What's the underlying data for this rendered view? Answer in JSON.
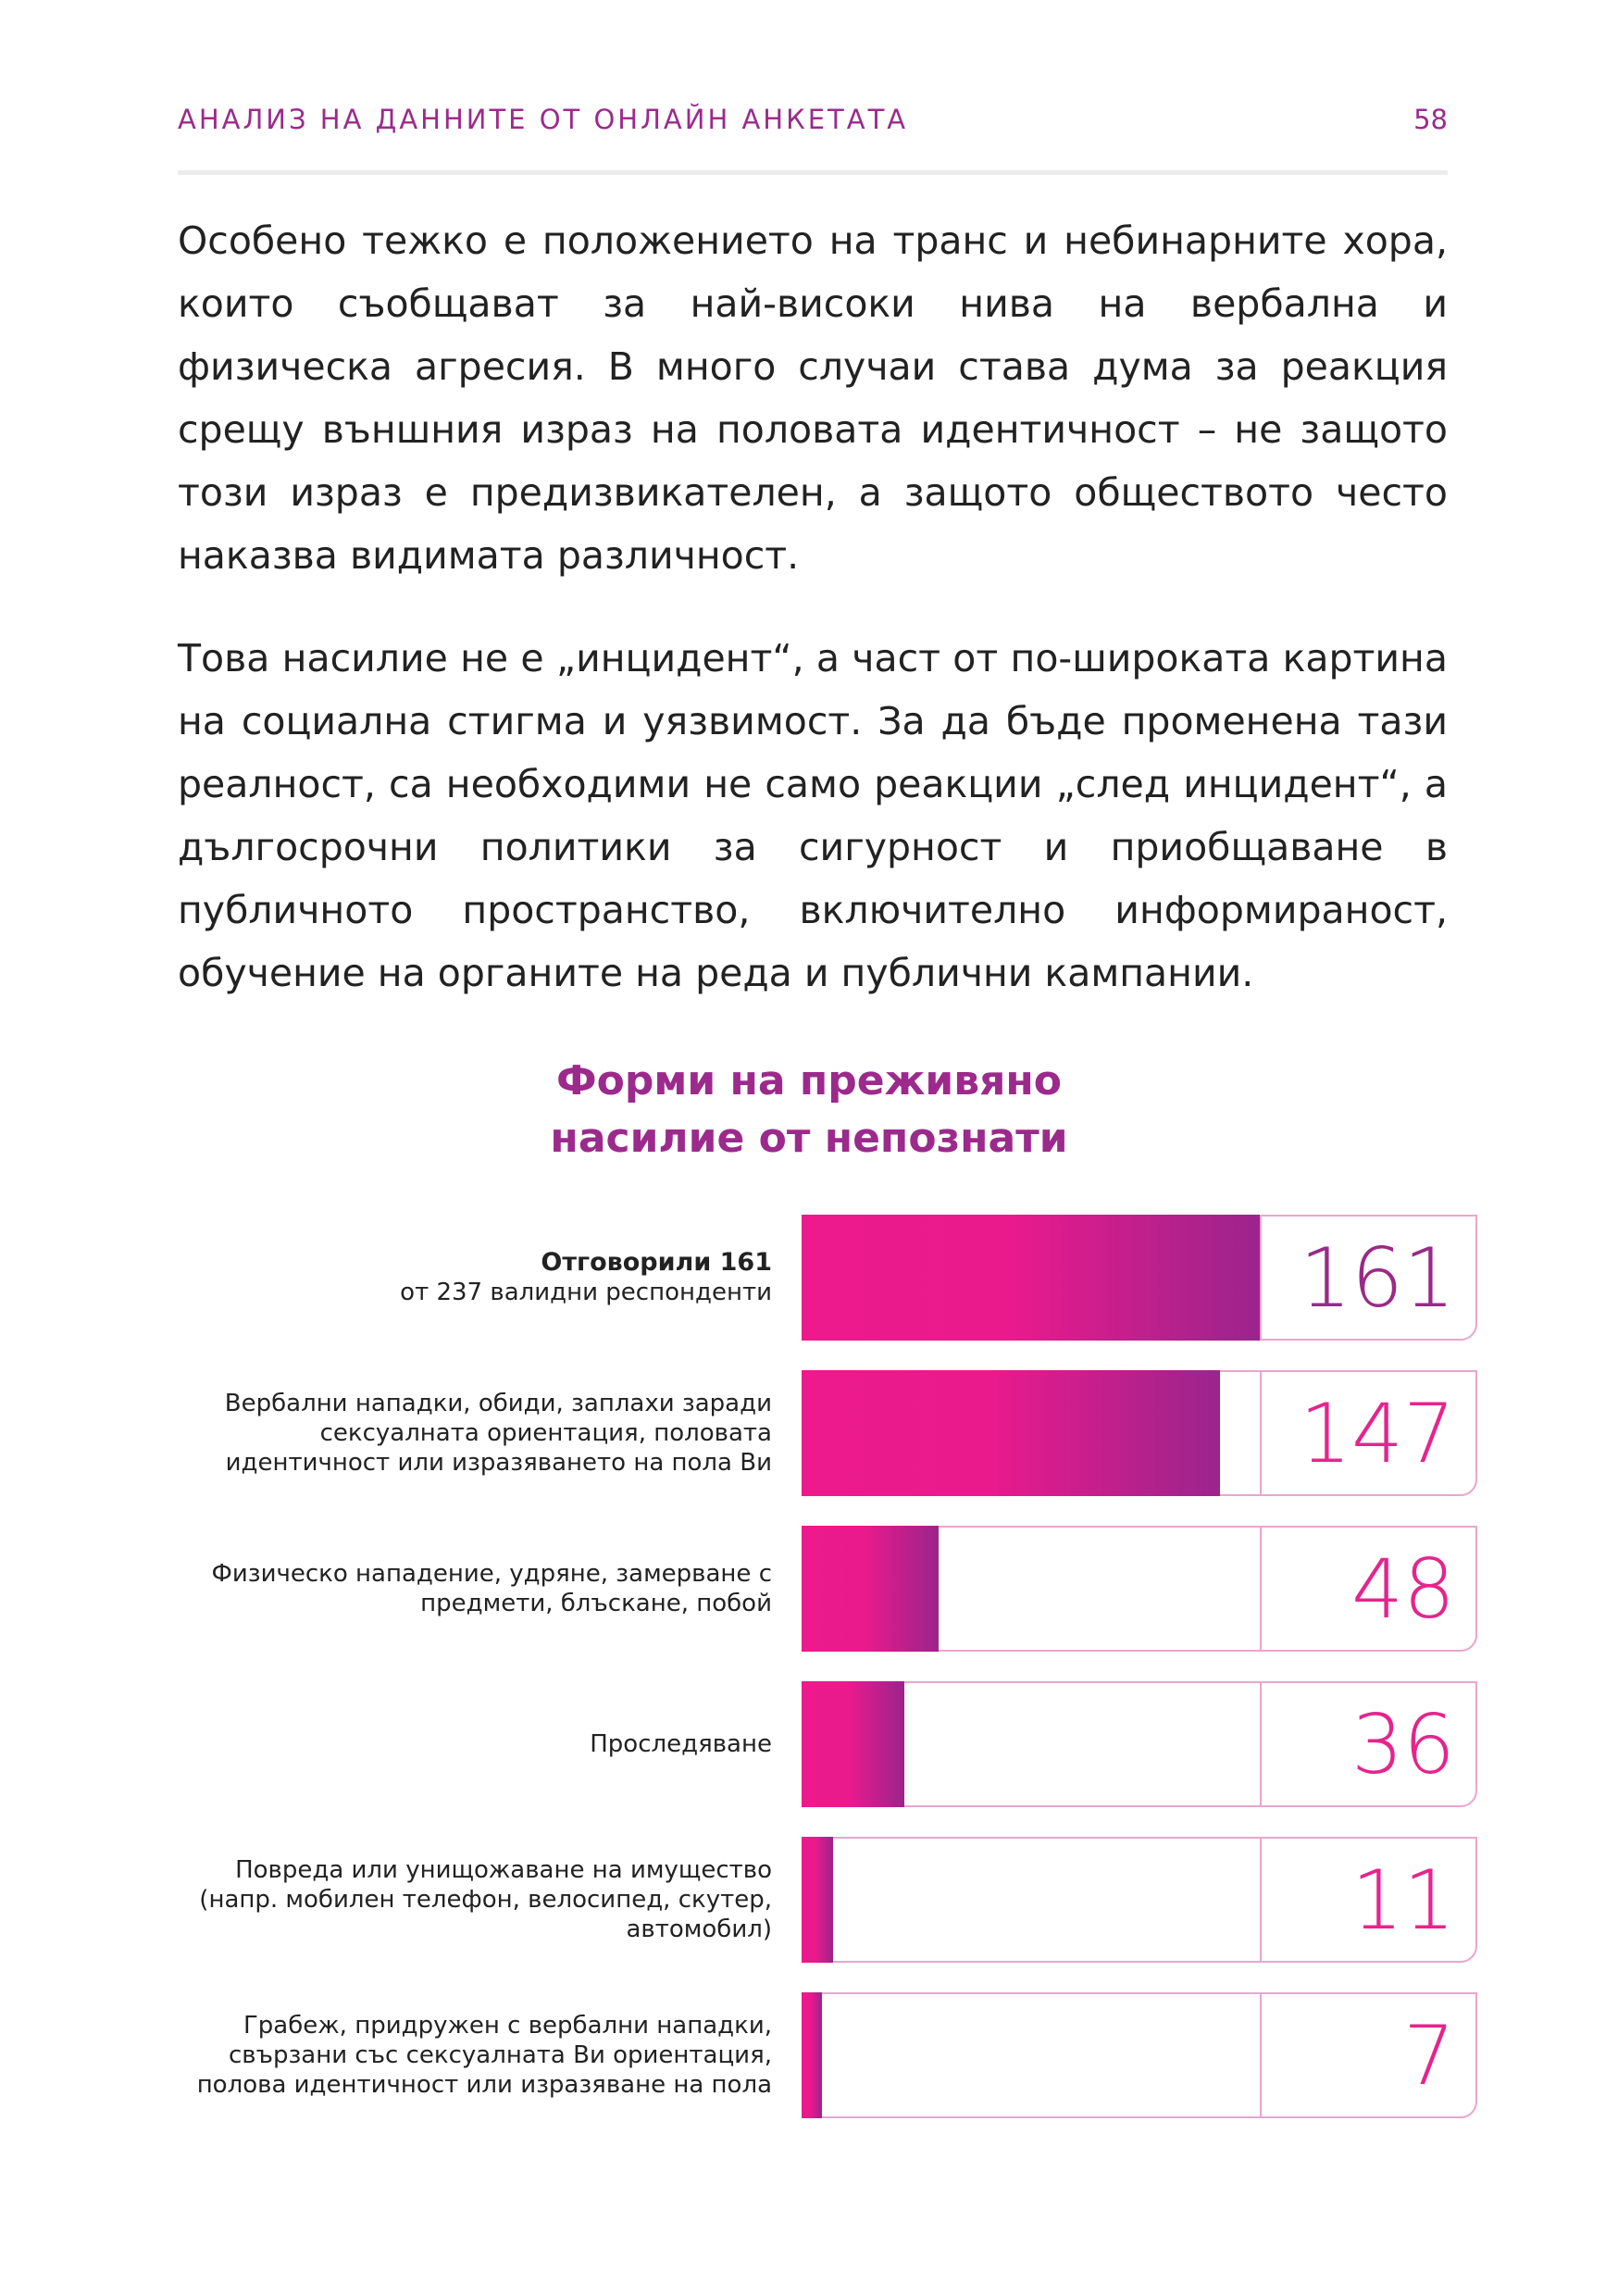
{
  "header": {
    "title": "АНАЛИЗ НА ДАННИТЕ ОТ ОНЛАЙН АНКЕТАТА",
    "page_number": "58"
  },
  "body": {
    "paragraph_1": "Особено тежко е положението на транс и небинарните хора, които съобщават за най-високи нива на вербална и физическа агресия. В много случаи става дума за реакция срещу външния израз на половата идентичност – не защото този израз е предизвикателен, а защото обществото често наказва видимата различност.",
    "paragraph_2": "Това насилие не е „инцидент“, а част от по-широката картина на социална стигма и уязвимост. За да бъде променена тази реалност, са необходими не само реакции „след инцидент“, а дългосрочни политики за сигурност и приобщаване в публичното пространство, включително информираност, обучение на органите на реда и публични кампании."
  },
  "colors": {
    "accent_purple": "#9c2a8c",
    "accent_pink": "#e6248d",
    "frame_pink": "#e9a6cc"
  },
  "chart_data": {
    "type": "bar",
    "orientation": "horizontal",
    "title": "Форми на преживяно насилие от непознати",
    "title_lines": [
      "Форми на преживяно",
      "насилие от непознати"
    ],
    "xlim": [
      0,
      161
    ],
    "categories": [
      "Отговорили 161 от 237 валидни респонденти",
      "Вербални нападки, обиди, заплахи заради сексуалната ориентация, половата идентичност или изразяването на пола Ви",
      "Физическо нападение, удряне, замерване с предмети, блъскане, побой",
      "Проследяване",
      "Повреда или унищожаване на имущество (напр. мобилен телефон, велосипед, скутер, автомобил)",
      "Грабеж, придружен с вербални нападки, свързани със сексуалната Ви ориентация, полова идентичност или изразяване на пола"
    ],
    "values": [
      161,
      147,
      48,
      36,
      11,
      7
    ],
    "rows": [
      {
        "label_lines": [
          "Отговорили 161",
          "от 237 валидни респонденти"
        ],
        "value": 161,
        "value_text": "161"
      },
      {
        "label_lines": [
          "Вербални нападки, обиди, заплахи заради",
          "сексуалната ориентация, половата",
          "идентичност или изразяването на пола Ви"
        ],
        "value": 147,
        "value_text": "147"
      },
      {
        "label_lines": [
          "Физическо нападение, удряне, замерване с",
          "предмети, блъскане, побой"
        ],
        "value": 48,
        "value_text": "48"
      },
      {
        "label_lines": [
          "Проследяване"
        ],
        "value": 36,
        "value_text": "36"
      },
      {
        "label_lines": [
          "Повреда или унищожаване на имущество",
          "(напр. мобилен телефон, велосипед, скутер,",
          "автомобил)"
        ],
        "value": 11,
        "value_text": "11"
      },
      {
        "label_lines": [
          "Грабеж, придружен с вербални нападки,",
          "свързани със сексуалната Ви ориентация,",
          "полова идентичност или изразяване на пола"
        ],
        "value": 7,
        "value_text": "7"
      }
    ]
  }
}
